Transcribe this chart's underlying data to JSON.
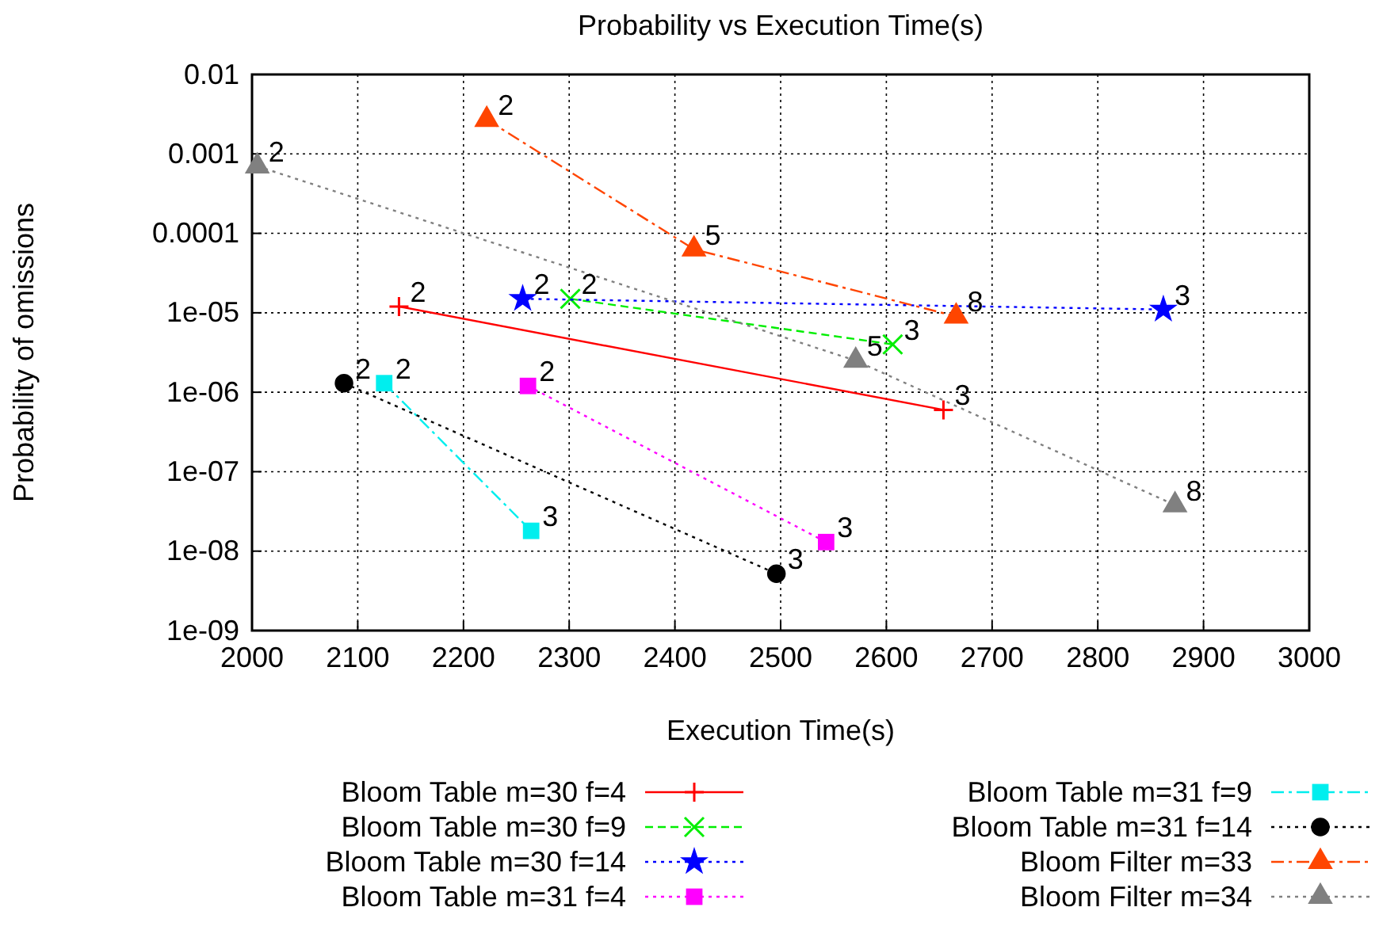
{
  "chart_data": {
    "type": "line",
    "title": "Probability vs Execution Time(s)",
    "xlabel": "Execution Time(s)",
    "ylabel": "Probability of omissions",
    "log": "y",
    "grid": true,
    "legend": "bottom",
    "xlim": [
      2000,
      3000
    ],
    "xticks": [
      2000,
      2100,
      2200,
      2300,
      2400,
      2500,
      2600,
      2700,
      2800,
      2900,
      3000
    ],
    "ylim": [
      1e-09,
      0.01
    ],
    "yticks": [
      {
        "value": 1e-09,
        "label": "1e-09"
      },
      {
        "value": 1e-08,
        "label": "1e-08"
      },
      {
        "value": 1e-07,
        "label": "1e-07"
      },
      {
        "value": 1e-06,
        "label": "1e-06"
      },
      {
        "value": 1e-05,
        "label": "1e-05"
      },
      {
        "value": 0.0001,
        "label": "0.0001"
      },
      {
        "value": 0.001,
        "label": "0.001"
      },
      {
        "value": 0.01,
        "label": "0.01"
      }
    ],
    "series": [
      {
        "name": "Bloom Table m=30 f=4",
        "color": "#ff0000",
        "marker": "cross",
        "line_style": "solid",
        "x": [
          2139,
          2654
        ],
        "values": [
          1.2e-05,
          6e-07
        ]
      },
      {
        "name": "Bloom Table m=30 f=9",
        "color": "#00ee00",
        "marker": "x",
        "line_style": "dashed",
        "x": [
          2301,
          2606
        ],
        "values": [
          1.5e-05,
          4e-06
        ]
      },
      {
        "name": "Bloom Table m=30 f=14",
        "color": "#0000ff",
        "marker": "star",
        "line_style": "dotted",
        "x": [
          2256,
          2862
        ],
        "values": [
          1.5e-05,
          1.1e-05
        ]
      },
      {
        "name": "Bloom Table m=31 f=4",
        "color": "#ff00ff",
        "marker": "square",
        "line_style": "dotted",
        "x": [
          2261,
          2543
        ],
        "values": [
          1.2e-06,
          1.3e-08
        ]
      },
      {
        "name": "Bloom Table m=31 f=9",
        "color": "#00eeee",
        "marker": "square",
        "line_style": "dashdot",
        "x": [
          2125,
          2264
        ],
        "values": [
          1.3e-06,
          1.8e-08
        ]
      },
      {
        "name": "Bloom Table m=31 f=14",
        "color": "#000000",
        "marker": "circle",
        "line_style": "dotted",
        "x": [
          2087,
          2496
        ],
        "values": [
          1.3e-06,
          5.2e-09
        ]
      },
      {
        "name": "Bloom Filter m=33",
        "color": "#ff4500",
        "marker": "triangle",
        "line_style": "dashdot",
        "x": [
          2222,
          2418,
          2666
        ],
        "values": [
          0.0027,
          6.3e-05,
          9e-06
        ]
      },
      {
        "name": "Bloom Filter m=34",
        "color": "#808080",
        "marker": "triangle",
        "line_style": "dotted",
        "x": [
          2005,
          2571,
          2873
        ],
        "values": [
          0.0007,
          2.5e-06,
          3.8e-08
        ]
      }
    ],
    "annotations": [
      {
        "text": "2",
        "x": 2139,
        "y": 1.2e-05
      },
      {
        "text": "3",
        "x": 2654,
        "y": 6e-07
      },
      {
        "text": "2",
        "x": 2301,
        "y": 1.5e-05
      },
      {
        "text": "3",
        "x": 2606,
        "y": 4e-06
      },
      {
        "text": "2",
        "x": 2256,
        "y": 1.5e-05
      },
      {
        "text": "3",
        "x": 2862,
        "y": 1.1e-05
      },
      {
        "text": "2",
        "x": 2261,
        "y": 1.2e-06
      },
      {
        "text": "3",
        "x": 2543,
        "y": 1.3e-08
      },
      {
        "text": "2",
        "x": 2125,
        "y": 1.3e-06
      },
      {
        "text": "3",
        "x": 2264,
        "y": 1.8e-08
      },
      {
        "text": "2",
        "x": 2087,
        "y": 1.3e-06
      },
      {
        "text": "3",
        "x": 2496,
        "y": 5.2e-09
      },
      {
        "text": "2",
        "x": 2222,
        "y": 0.0027
      },
      {
        "text": "5",
        "x": 2418,
        "y": 6.3e-05
      },
      {
        "text": "8",
        "x": 2666,
        "y": 9e-06
      },
      {
        "text": "2",
        "x": 2005,
        "y": 0.0007
      },
      {
        "text": "5",
        "x": 2571,
        "y": 2.5e-06
      },
      {
        "text": "8",
        "x": 2873,
        "y": 3.8e-08
      }
    ]
  }
}
